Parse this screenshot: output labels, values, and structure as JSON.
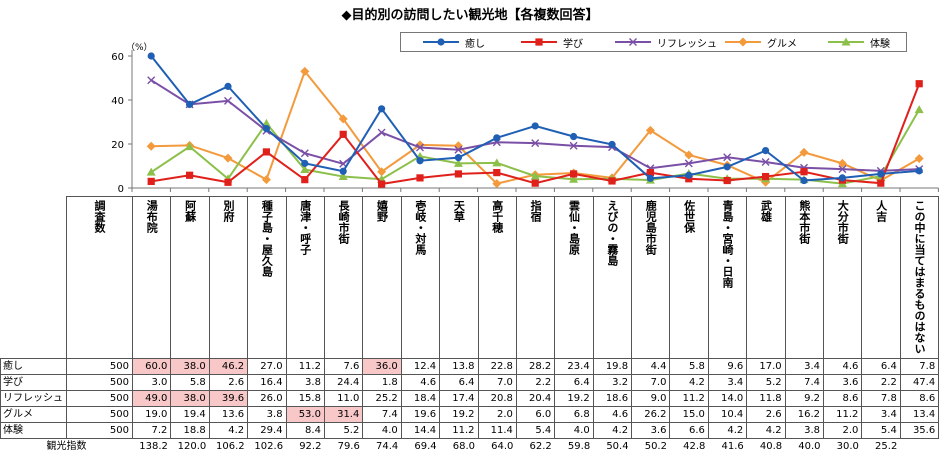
{
  "title": "◆目的別の訪問したい観光地【各複数回答】",
  "unit_label": "（%）",
  "table": {
    "n_header": "調査数",
    "total_label": "観光指数",
    "n_values": [
      "500",
      "500",
      "500",
      "500",
      "500"
    ]
  },
  "chart_data": {
    "type": "line",
    "title": "◆目的別の訪問したい観光地【各複数回答】",
    "ylabel": "（%）",
    "ylim": [
      0,
      60
    ],
    "yticks": [
      0,
      20,
      40,
      60
    ],
    "grid": false,
    "legend_position": "top",
    "categories": [
      "湯布院",
      "阿蘇",
      "別府",
      "種子島・屋久島",
      "唐津・呼子",
      "長崎市街",
      "嬉野",
      "壱岐・対馬",
      "天草",
      "高千穂",
      "指宿",
      "雲仙・島原",
      "えびの・霧島",
      "鹿児島市街",
      "佐世保",
      "青島・宮崎・日南",
      "武雄",
      "熊本市街",
      "大分市街",
      "人吉",
      "この中に当てはまるものはない"
    ],
    "series": [
      {
        "name": "癒し",
        "color": "#1f5fb4",
        "marker": "circle",
        "values": [
          60.0,
          38.0,
          46.2,
          27.0,
          11.2,
          7.6,
          36.0,
          12.4,
          13.8,
          22.8,
          28.2,
          23.4,
          19.8,
          4.4,
          5.8,
          9.6,
          17.0,
          3.4,
          4.6,
          6.4,
          7.8
        ],
        "highlight": [
          0,
          1,
          2,
          6
        ]
      },
      {
        "name": "学び",
        "color": "#e0201b",
        "marker": "square",
        "values": [
          3.0,
          5.8,
          2.6,
          16.4,
          3.8,
          24.4,
          1.8,
          4.6,
          6.4,
          7.0,
          2.2,
          6.4,
          3.2,
          7.0,
          4.2,
          3.4,
          5.2,
          7.4,
          3.6,
          2.2,
          47.4
        ],
        "highlight": []
      },
      {
        "name": "リフレッシュ",
        "color": "#7a4fa6",
        "marker": "cross",
        "values": [
          49.0,
          38.0,
          39.6,
          26.0,
          15.8,
          11.0,
          25.2,
          18.4,
          17.4,
          20.8,
          20.4,
          19.2,
          18.6,
          9.0,
          11.2,
          14.0,
          11.8,
          9.2,
          8.6,
          7.8,
          8.6
        ],
        "highlight": [
          0,
          1,
          2
        ]
      },
      {
        "name": "グルメ",
        "color": "#f39a3c",
        "marker": "diamond",
        "values": [
          19.0,
          19.4,
          13.6,
          3.8,
          53.0,
          31.4,
          7.4,
          19.6,
          19.2,
          2.0,
          6.0,
          6.8,
          4.6,
          26.2,
          15.0,
          10.4,
          2.6,
          16.2,
          11.2,
          3.4,
          13.4
        ],
        "highlight": [
          4,
          5
        ]
      },
      {
        "name": "体験",
        "color": "#8cc04a",
        "marker": "triangle",
        "values": [
          7.2,
          18.8,
          4.2,
          29.4,
          8.4,
          5.2,
          4.0,
          14.4,
          11.2,
          11.4,
          5.4,
          4.0,
          4.2,
          3.6,
          6.6,
          4.2,
          4.2,
          3.8,
          2.0,
          5.4,
          35.6
        ],
        "highlight": []
      }
    ],
    "total": {
      "name": "観光指数",
      "values": [
        "138.2",
        "120.0",
        "106.2",
        "102.6",
        "92.2",
        "79.6",
        "74.4",
        "69.4",
        "68.0",
        "64.0",
        "62.2",
        "59.8",
        "50.4",
        "50.2",
        "42.8",
        "41.6",
        "40.8",
        "40.0",
        "30.0",
        "25.2",
        ""
      ]
    }
  }
}
